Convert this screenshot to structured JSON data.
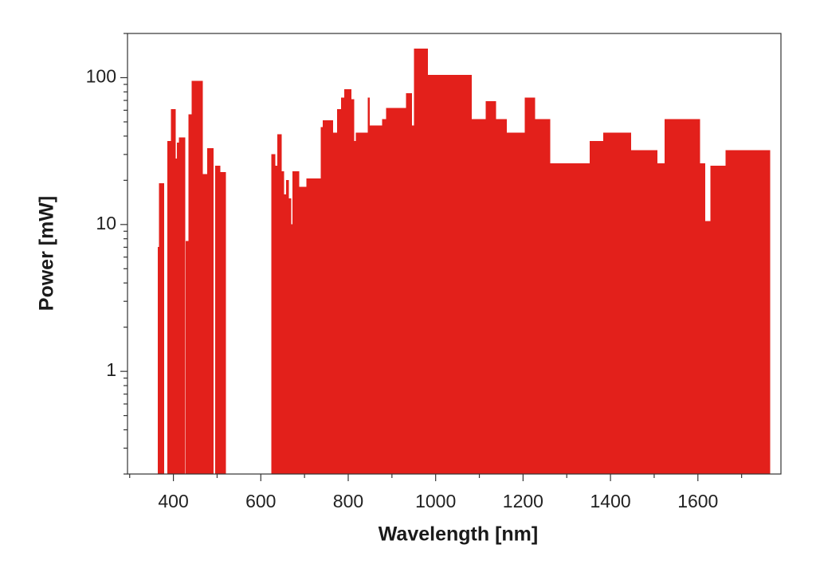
{
  "chart_data": {
    "type": "step-area",
    "x_label": "Wavelength [nm]",
    "y_label": "Power [mW]",
    "color": "#e3201b",
    "yscale": "log",
    "minor_ticks": true,
    "xlim": [
      295,
      1790
    ],
    "ylim": [
      0.2,
      200
    ],
    "xticks": [
      400,
      600,
      800,
      1000,
      1200,
      1400,
      1600
    ],
    "yticks": [
      1,
      10,
      100
    ],
    "x": [
      365,
      368,
      378,
      387,
      395,
      405,
      409,
      413,
      427,
      429,
      435,
      442,
      467,
      478,
      491,
      496,
      507,
      520,
      625,
      633,
      638,
      647,
      653,
      658,
      664,
      669,
      673,
      687,
      705,
      738,
      742,
      765,
      775,
      784,
      791,
      807,
      813,
      818,
      845,
      849,
      878,
      887,
      933,
      945,
      951,
      982,
      1082,
      1115,
      1138,
      1162,
      1204,
      1227,
      1262,
      1353,
      1384,
      1447,
      1507,
      1524,
      1604,
      1616,
      1629,
      1664,
      1765
    ],
    "values": [
      7,
      19,
      null,
      37,
      61,
      28,
      36,
      39,
      null,
      7.7,
      56,
      95,
      22,
      33,
      null,
      25,
      22.6,
      null,
      30,
      25,
      41,
      23,
      16,
      20,
      15,
      10,
      23,
      18,
      20.5,
      46,
      51,
      42,
      61,
      73,
      83,
      71,
      37,
      42,
      73,
      47,
      52,
      62,
      78,
      47,
      157,
      104,
      52,
      69,
      52,
      42,
      73,
      52,
      26,
      37,
      42,
      32,
      26,
      52,
      26,
      10.5,
      25,
      32,
      null
    ]
  }
}
